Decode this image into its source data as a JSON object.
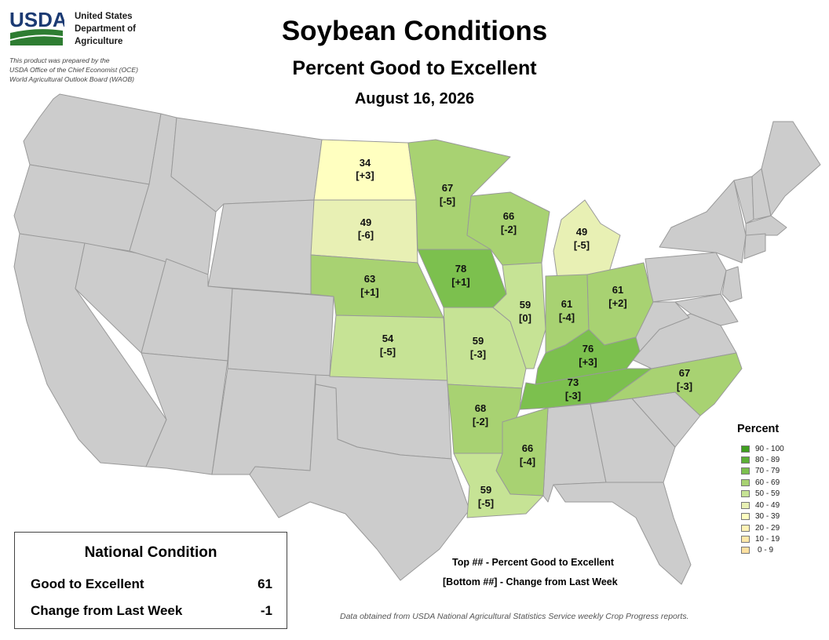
{
  "agency": {
    "logo_text": "USDA",
    "name_lines": [
      "United States",
      "Department of",
      "Agriculture"
    ],
    "prepared_lines": [
      "This product was prepared by the",
      "USDA Office of the Chief Economist (OCE)",
      "World Agricultural Outlook Board (WAOB)"
    ]
  },
  "title": "Soybean Conditions",
  "subtitle": "Percent Good to Excellent",
  "date": "August 16, 2026",
  "map": {
    "colors": {
      "no_data": "#cccccc",
      "border": "#999999"
    },
    "states": {
      "ND": {
        "value": "34",
        "change": "[+3]",
        "color": "#ffffc0"
      },
      "SD": {
        "value": "49",
        "change": "[-6]",
        "color": "#e8f0b4"
      },
      "NE": {
        "value": "63",
        "change": "[+1]",
        "color": "#a8d272"
      },
      "KS": {
        "value": "54",
        "change": "[-5]",
        "color": "#c6e395"
      },
      "MN": {
        "value": "67",
        "change": "[-5]",
        "color": "#a8d272"
      },
      "IA": {
        "value": "78",
        "change": "[+1]",
        "color": "#7cc04e"
      },
      "MO": {
        "value": "59",
        "change": "[-3]",
        "color": "#c6e395"
      },
      "WI": {
        "value": "66",
        "change": "[-2]",
        "color": "#a8d272"
      },
      "IL": {
        "value": "59",
        "change": "[0]",
        "color": "#c6e395"
      },
      "MI": {
        "value": "49",
        "change": "[-5]",
        "color": "#e8f0b4"
      },
      "IN": {
        "value": "61",
        "change": "[-4]",
        "color": "#a8d272"
      },
      "OH": {
        "value": "61",
        "change": "[+2]",
        "color": "#a8d272"
      },
      "KY": {
        "value": "76",
        "change": "[+3]",
        "color": "#7cc04e"
      },
      "TN": {
        "value": "73",
        "change": "[-3]",
        "color": "#7cc04e"
      },
      "NC": {
        "value": "67",
        "change": "[-3]",
        "color": "#a8d272"
      },
      "AR": {
        "value": "68",
        "change": "[-2]",
        "color": "#a8d272"
      },
      "MS": {
        "value": "66",
        "change": "[-4]",
        "color": "#a8d272"
      },
      "LA": {
        "value": "59",
        "change": "[-5]",
        "color": "#c6e395"
      }
    }
  },
  "legend": {
    "title": "Percent",
    "items": [
      {
        "label": "90 - 100",
        "color": "#3f9f1f"
      },
      {
        "label": "80 - 89",
        "color": "#5cb036"
      },
      {
        "label": "70 - 79",
        "color": "#7cc04e"
      },
      {
        "label": "60 - 69",
        "color": "#a8d272"
      },
      {
        "label": "50 - 59",
        "color": "#c6e395"
      },
      {
        "label": "40 - 49",
        "color": "#e8f0b4"
      },
      {
        "label": "30 - 39",
        "color": "#ffffc0"
      },
      {
        "label": "20 - 29",
        "color": "#fff3b5"
      },
      {
        "label": "10 - 19",
        "color": "#ffe8a8"
      },
      {
        "label": "0 - 9",
        "color": "#fde0a0"
      }
    ]
  },
  "national": {
    "title": "National Condition",
    "rows": [
      {
        "label": "Good to Excellent",
        "value": "61"
      },
      {
        "label": "Change from Last Week",
        "value": "-1"
      }
    ]
  },
  "key": {
    "top": "Top ## - Percent Good to Excellent",
    "bottom": "[Bottom ##] - Change from Last Week"
  },
  "source": "Data obtained from USDA National Agricultural Statistics Service weekly Crop Progress reports."
}
